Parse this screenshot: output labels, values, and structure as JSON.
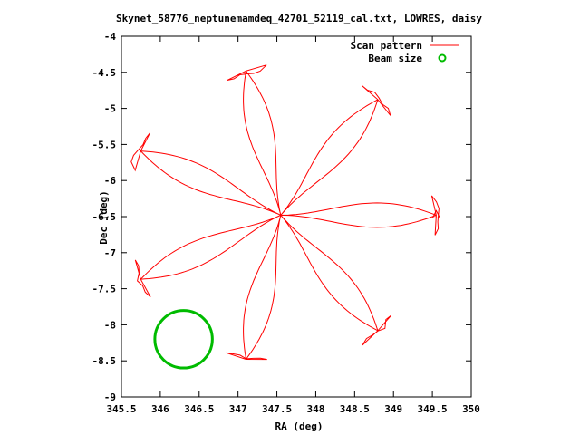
{
  "chart_data": {
    "type": "scatter",
    "title": "Skynet_58776_neptunemamdeq_42701_52119_cal.txt, LOWRES, daisy",
    "xlabel": "RA (deg)",
    "ylabel": "Dec (deg)",
    "xlim": [
      345.5,
      350
    ],
    "ylim": [
      -9,
      -4
    ],
    "xticks": [
      "345.5",
      "346",
      "346.5",
      "347",
      "347.5",
      "348",
      "348.5",
      "349",
      "349.5",
      "350"
    ],
    "yticks": [
      "-4",
      "-4.5",
      "-5",
      "-5.5",
      "-6",
      "-6.5",
      "-7",
      "-7.5",
      "-8",
      "-8.5",
      "-9"
    ],
    "grid": false,
    "legend_position": "top-right",
    "series": [
      {
        "name": "Scan pattern",
        "color": "#ff0000",
        "style": "line",
        "pattern": "daisy",
        "center": [
          347.55,
          -6.48
        ],
        "petals": 7,
        "petal_tip_radius_x_deg": 2.0,
        "petal_tip_radius_y_deg": 2.05,
        "tip_angles_deg": [
          0,
          51.4,
          102.9,
          154.3,
          205.7,
          257.1,
          308.6
        ]
      },
      {
        "name": "Beam size",
        "color": "#00bb00",
        "style": "circle",
        "center": [
          346.3,
          -8.2
        ],
        "radius_deg": 0.37
      }
    ]
  }
}
